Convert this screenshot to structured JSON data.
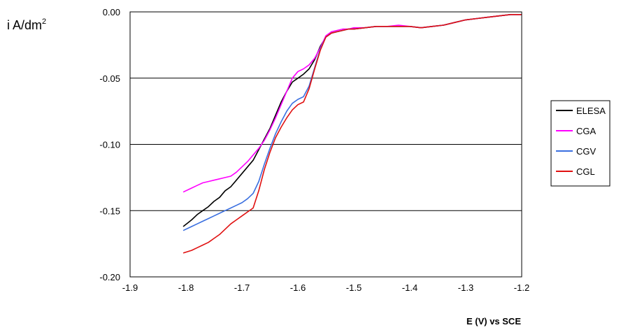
{
  "chart_data": {
    "type": "line",
    "title": "",
    "ylabel": "i A/dm",
    "ylabel_superscript": "2",
    "xlabel": "E (V) vs SCE",
    "xlim": [
      -1.9,
      -1.2
    ],
    "ylim": [
      -0.2,
      0.0
    ],
    "x_ticks": [
      "-1.9",
      "-1.8",
      "-1.7",
      "-1.6",
      "-1.5",
      "-1.4",
      "-1.3",
      "-1.2"
    ],
    "y_ticks": [
      "0.00",
      "-0.05",
      "-0.10",
      "-0.15",
      "-0.20"
    ],
    "grid": "horizontal",
    "legend_position": "right",
    "series": [
      {
        "name": "ELESA",
        "color": "#000000",
        "x": [
          -1.805,
          -1.79,
          -1.78,
          -1.77,
          -1.76,
          -1.75,
          -1.74,
          -1.73,
          -1.72,
          -1.71,
          -1.7,
          -1.69,
          -1.68,
          -1.67,
          -1.66,
          -1.65,
          -1.64,
          -1.63,
          -1.62,
          -1.61,
          -1.6,
          -1.59,
          -1.58,
          -1.57,
          -1.56,
          -1.55,
          -1.54,
          -1.53,
          -1.52,
          -1.51,
          -1.5,
          -1.48,
          -1.46,
          -1.44,
          -1.42,
          -1.4,
          -1.38,
          -1.36,
          -1.34,
          -1.32,
          -1.3,
          -1.28,
          -1.26,
          -1.24,
          -1.22,
          -1.2
        ],
        "y": [
          -0.162,
          -0.157,
          -0.153,
          -0.15,
          -0.147,
          -0.143,
          -0.14,
          -0.135,
          -0.132,
          -0.127,
          -0.122,
          -0.117,
          -0.112,
          -0.104,
          -0.096,
          -0.088,
          -0.078,
          -0.068,
          -0.06,
          -0.053,
          -0.05,
          -0.047,
          -0.043,
          -0.036,
          -0.026,
          -0.019,
          -0.016,
          -0.015,
          -0.014,
          -0.013,
          -0.013,
          -0.012,
          -0.011,
          -0.011,
          -0.011,
          -0.011,
          -0.012,
          -0.011,
          -0.01,
          -0.008,
          -0.006,
          -0.005,
          -0.004,
          -0.003,
          -0.002,
          -0.002
        ]
      },
      {
        "name": "CGA",
        "color": "#ff00ff",
        "x": [
          -1.805,
          -1.79,
          -1.78,
          -1.77,
          -1.76,
          -1.75,
          -1.74,
          -1.73,
          -1.72,
          -1.71,
          -1.7,
          -1.69,
          -1.68,
          -1.67,
          -1.66,
          -1.65,
          -1.64,
          -1.63,
          -1.62,
          -1.61,
          -1.6,
          -1.59,
          -1.58,
          -1.57,
          -1.56,
          -1.55,
          -1.54,
          -1.53,
          -1.52,
          -1.51,
          -1.5,
          -1.48,
          -1.46,
          -1.44,
          -1.42,
          -1.4,
          -1.38,
          -1.36,
          -1.34,
          -1.32,
          -1.3,
          -1.28,
          -1.26,
          -1.24,
          -1.22,
          -1.2
        ],
        "y": [
          -0.136,
          -0.133,
          -0.131,
          -0.129,
          -0.128,
          -0.127,
          -0.126,
          -0.125,
          -0.124,
          -0.121,
          -0.117,
          -0.113,
          -0.108,
          -0.103,
          -0.097,
          -0.089,
          -0.08,
          -0.07,
          -0.06,
          -0.05,
          -0.045,
          -0.043,
          -0.04,
          -0.035,
          -0.027,
          -0.018,
          -0.015,
          -0.014,
          -0.013,
          -0.013,
          -0.012,
          -0.012,
          -0.011,
          -0.011,
          -0.01,
          -0.011,
          -0.012,
          -0.011,
          -0.01,
          -0.008,
          -0.006,
          -0.005,
          -0.004,
          -0.003,
          -0.002,
          -0.002
        ]
      },
      {
        "name": "CGV",
        "color": "#3a6fe0",
        "x": [
          -1.805,
          -1.79,
          -1.78,
          -1.77,
          -1.76,
          -1.75,
          -1.74,
          -1.73,
          -1.72,
          -1.71,
          -1.7,
          -1.69,
          -1.68,
          -1.67,
          -1.66,
          -1.65,
          -1.64,
          -1.63,
          -1.62,
          -1.61,
          -1.6,
          -1.59,
          -1.58,
          -1.57,
          -1.56,
          -1.55,
          -1.54,
          -1.53,
          -1.52,
          -1.51,
          -1.5,
          -1.48,
          -1.46,
          -1.44,
          -1.42,
          -1.4,
          -1.38,
          -1.36,
          -1.34,
          -1.32,
          -1.3,
          -1.28,
          -1.26,
          -1.24,
          -1.22,
          -1.2
        ],
        "y": [
          -0.165,
          -0.162,
          -0.16,
          -0.158,
          -0.156,
          -0.154,
          -0.152,
          -0.15,
          -0.148,
          -0.146,
          -0.144,
          -0.141,
          -0.137,
          -0.128,
          -0.115,
          -0.103,
          -0.092,
          -0.083,
          -0.075,
          -0.069,
          -0.066,
          -0.064,
          -0.056,
          -0.042,
          -0.028,
          -0.019,
          -0.016,
          -0.015,
          -0.014,
          -0.013,
          -0.013,
          -0.012,
          -0.011,
          -0.011,
          -0.011,
          -0.011,
          -0.012,
          -0.011,
          -0.01,
          -0.008,
          -0.006,
          -0.005,
          -0.004,
          -0.003,
          -0.002,
          -0.002
        ]
      },
      {
        "name": "CGL",
        "color": "#e01010",
        "x": [
          -1.805,
          -1.79,
          -1.78,
          -1.77,
          -1.76,
          -1.75,
          -1.74,
          -1.73,
          -1.72,
          -1.71,
          -1.7,
          -1.69,
          -1.68,
          -1.67,
          -1.66,
          -1.65,
          -1.64,
          -1.63,
          -1.62,
          -1.61,
          -1.6,
          -1.59,
          -1.58,
          -1.57,
          -1.56,
          -1.55,
          -1.54,
          -1.53,
          -1.52,
          -1.51,
          -1.5,
          -1.48,
          -1.46,
          -1.44,
          -1.42,
          -1.4,
          -1.38,
          -1.36,
          -1.34,
          -1.32,
          -1.3,
          -1.28,
          -1.26,
          -1.24,
          -1.22,
          -1.2
        ],
        "y": [
          -0.182,
          -0.18,
          -0.178,
          -0.176,
          -0.174,
          -0.171,
          -0.168,
          -0.164,
          -0.16,
          -0.157,
          -0.154,
          -0.151,
          -0.148,
          -0.135,
          -0.119,
          -0.106,
          -0.095,
          -0.087,
          -0.08,
          -0.074,
          -0.07,
          -0.068,
          -0.058,
          -0.043,
          -0.029,
          -0.019,
          -0.016,
          -0.015,
          -0.014,
          -0.013,
          -0.013,
          -0.012,
          -0.011,
          -0.011,
          -0.011,
          -0.011,
          -0.012,
          -0.011,
          -0.01,
          -0.008,
          -0.006,
          -0.005,
          -0.004,
          -0.003,
          -0.002,
          -0.002
        ]
      }
    ]
  }
}
